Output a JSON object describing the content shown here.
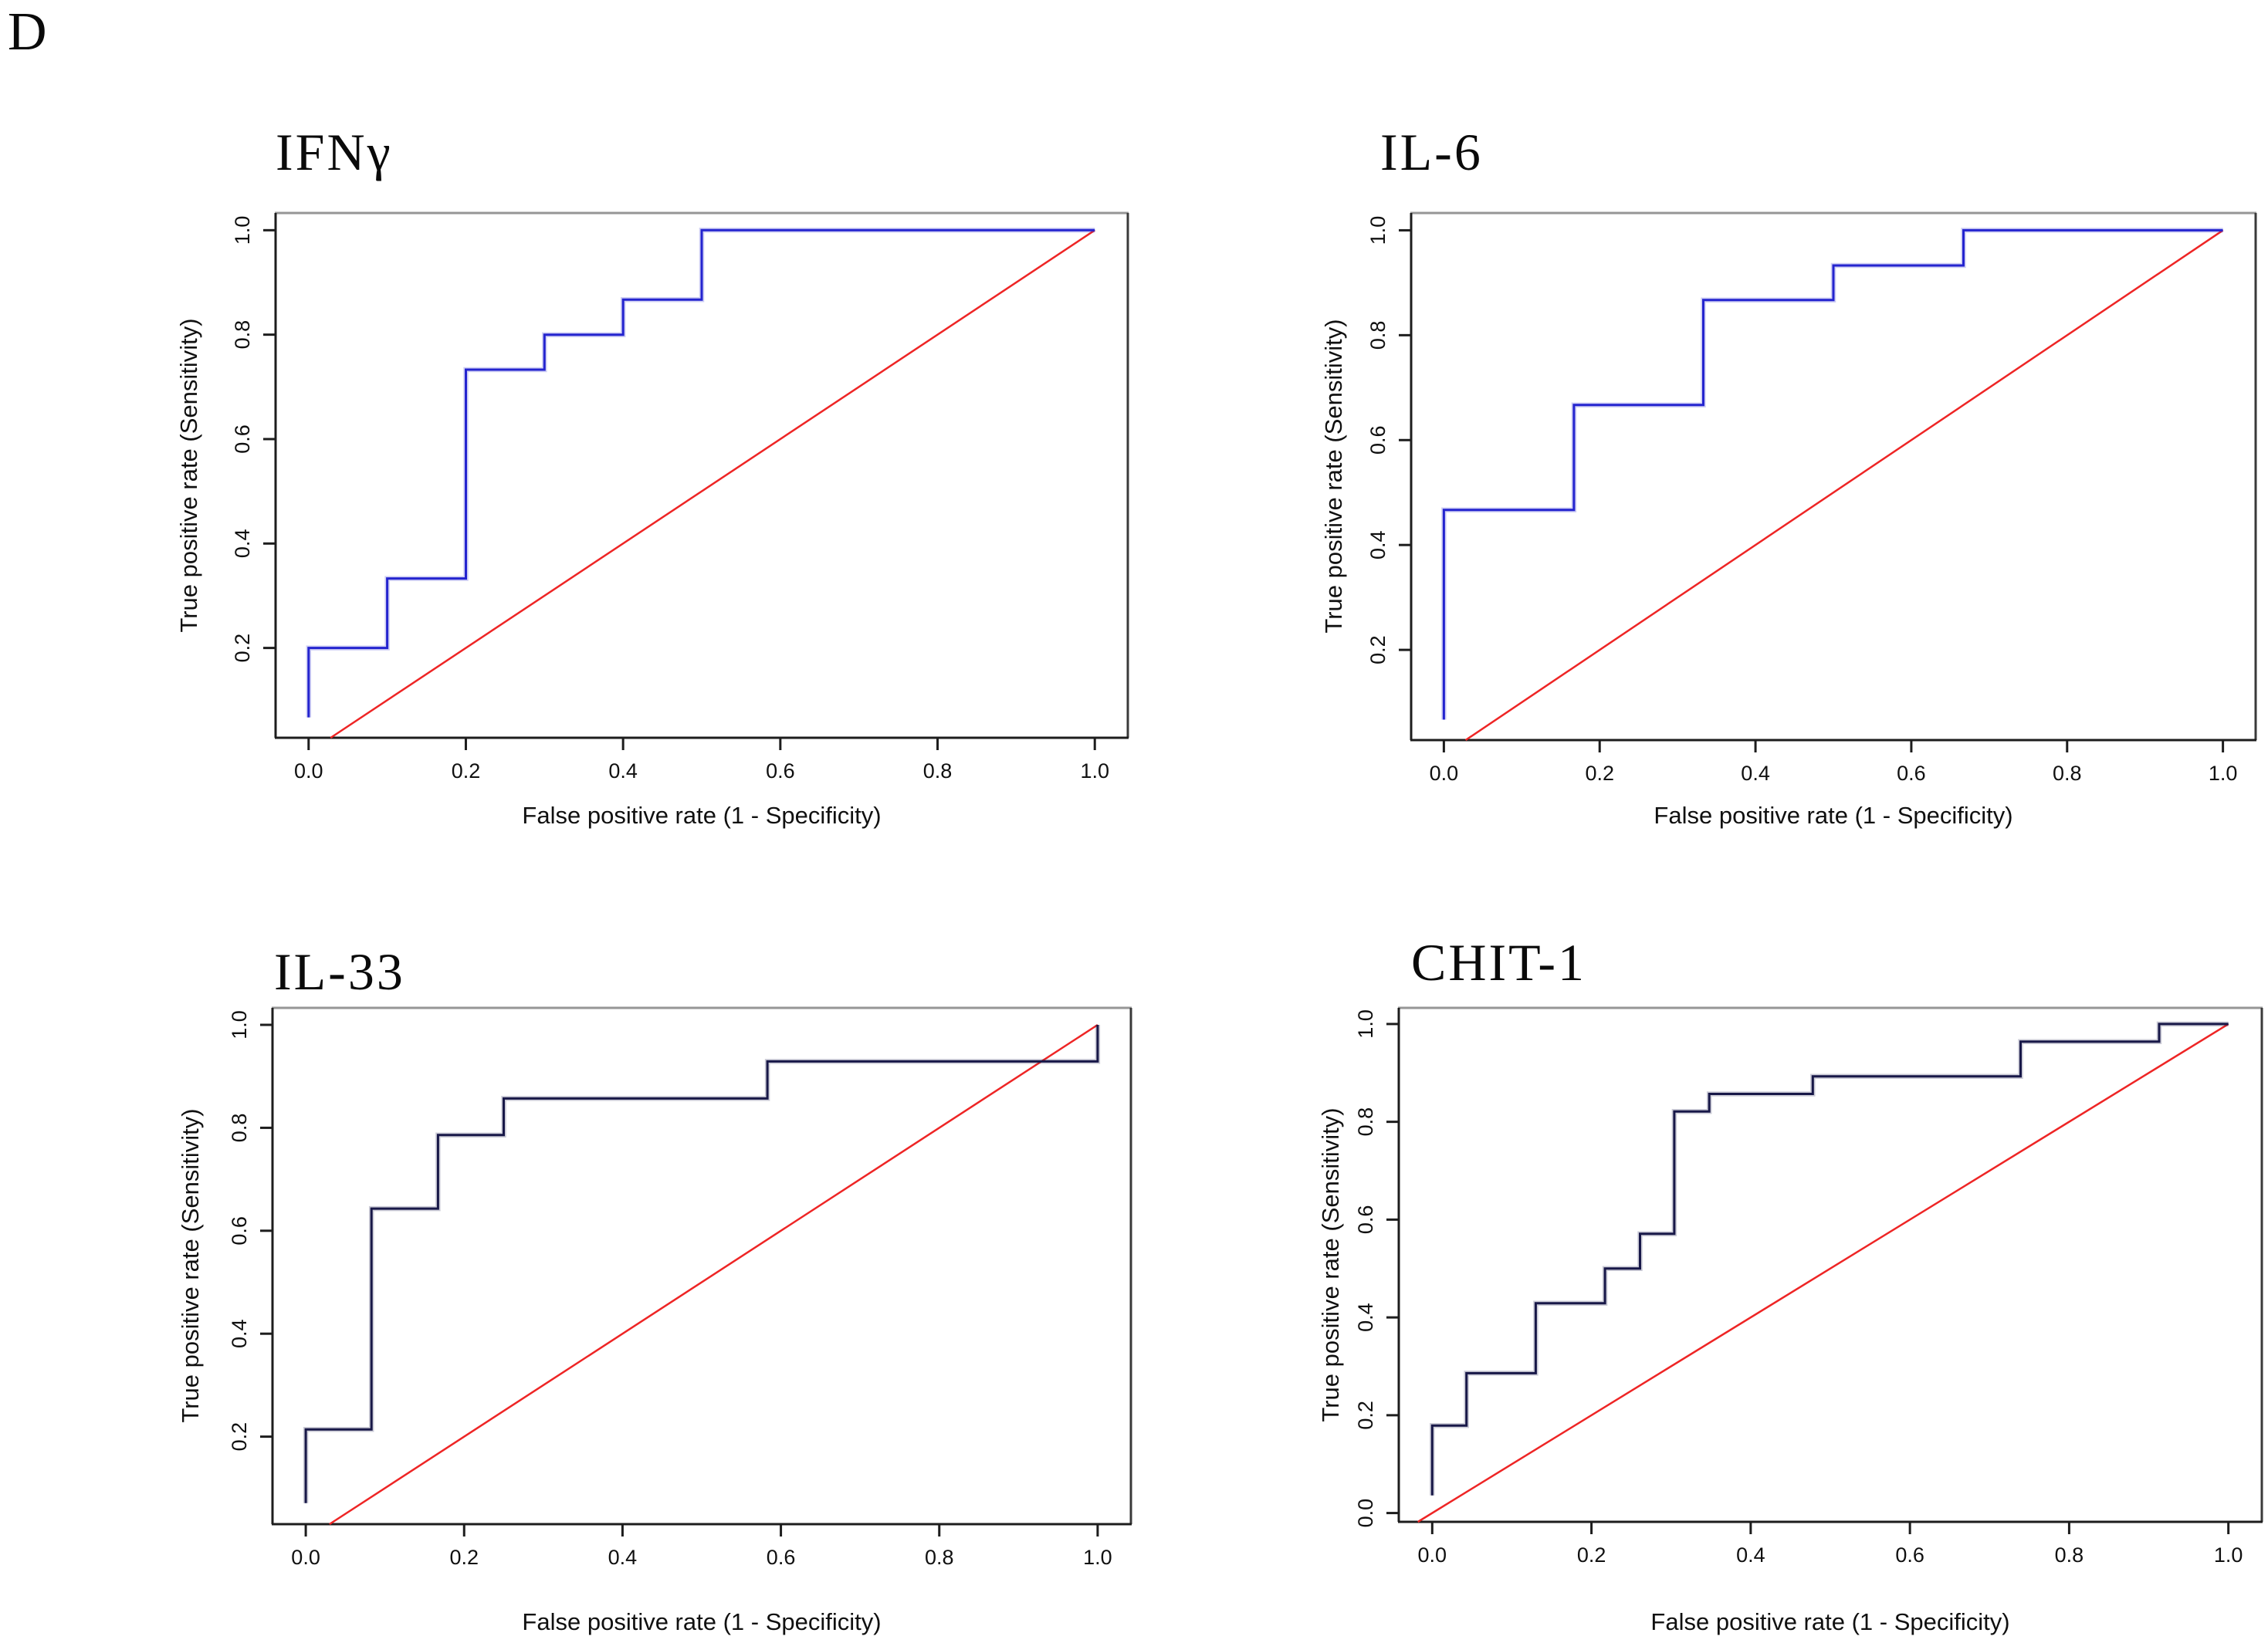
{
  "figure": {
    "panel_label": "D"
  },
  "chart_data": [
    {
      "type": "line",
      "title": "IFNγ",
      "xlabel": "False positive rate (1 - Specificity)",
      "ylabel": "True positive rate (Sensitivity)",
      "xticks": [
        0.0,
        0.2,
        0.4,
        0.6,
        0.8,
        1.0
      ],
      "yticks": [
        0.2,
        0.4,
        0.6,
        0.8,
        1.0
      ],
      "xlim": [
        -0.042,
        1.042
      ],
      "ylim": [
        0.028,
        1.033
      ],
      "grid": false,
      "legend": "none",
      "curve_color": "#2424cf",
      "diagonal_color": "#ee2525",
      "roc_points": [
        [
          0,
          0.067
        ],
        [
          0,
          0.2
        ],
        [
          0.1,
          0.2
        ],
        [
          0.1,
          0.333
        ],
        [
          0.2,
          0.333
        ],
        [
          0.2,
          0.733
        ],
        [
          0.3,
          0.733
        ],
        [
          0.3,
          0.8
        ],
        [
          0.4,
          0.8
        ],
        [
          0.4,
          0.867
        ],
        [
          0.5,
          0.867
        ],
        [
          0.5,
          1.0
        ],
        [
          1.0,
          1.0
        ]
      ],
      "diagonal": [
        [
          0,
          0
        ],
        [
          1,
          1
        ]
      ]
    },
    {
      "type": "line",
      "title": "IL-6",
      "xlabel": "False positive rate (1 - Specificity)",
      "ylabel": "True positive rate (Sensitivity)",
      "xticks": [
        0.0,
        0.2,
        0.4,
        0.6,
        0.8,
        1.0
      ],
      "yticks": [
        0.2,
        0.4,
        0.6,
        0.8,
        1.0
      ],
      "xlim": [
        -0.042,
        1.042
      ],
      "ylim": [
        0.028,
        1.033
      ],
      "grid": false,
      "legend": "none",
      "curve_color": "#2424cf",
      "diagonal_color": "#ee2525",
      "roc_points": [
        [
          0,
          0.067
        ],
        [
          0,
          0.467
        ],
        [
          0.167,
          0.467
        ],
        [
          0.167,
          0.667
        ],
        [
          0.333,
          0.667
        ],
        [
          0.333,
          0.867
        ],
        [
          0.5,
          0.867
        ],
        [
          0.5,
          0.933
        ],
        [
          0.667,
          0.933
        ],
        [
          0.667,
          1.0
        ],
        [
          1.0,
          1.0
        ]
      ],
      "diagonal": [
        [
          0,
          0
        ],
        [
          1,
          1
        ]
      ]
    },
    {
      "type": "line",
      "title": "IL-33",
      "xlabel": "False positive rate (1 - Specificity)",
      "ylabel": "True positive rate (Sensitivity)",
      "xticks": [
        0.0,
        0.2,
        0.4,
        0.6,
        0.8,
        1.0
      ],
      "yticks": [
        0.2,
        0.4,
        0.6,
        0.8,
        1.0
      ],
      "xlim": [
        -0.042,
        1.042
      ],
      "ylim": [
        0.03,
        1.033
      ],
      "grid": false,
      "legend": "none",
      "curve_color": "#181848",
      "diagonal_color": "#ee2525",
      "roc_points": [
        [
          0,
          0.071
        ],
        [
          0,
          0.214
        ],
        [
          0.083,
          0.214
        ],
        [
          0.083,
          0.643
        ],
        [
          0.167,
          0.643
        ],
        [
          0.167,
          0.786
        ],
        [
          0.25,
          0.786
        ],
        [
          0.25,
          0.857
        ],
        [
          0.583,
          0.857
        ],
        [
          0.583,
          0.929
        ],
        [
          1.0,
          0.929
        ],
        [
          1.0,
          1.0
        ]
      ],
      "diagonal": [
        [
          0,
          0
        ],
        [
          1,
          1
        ]
      ]
    },
    {
      "type": "line",
      "title": "CHIT-1",
      "xlabel": "False positive rate (1 - Specificity)",
      "ylabel": "True positive rate (Sensitivity)",
      "xticks": [
        0.0,
        0.2,
        0.4,
        0.6,
        0.8,
        1.0
      ],
      "yticks": [
        0.0,
        0.2,
        0.4,
        0.6,
        0.8,
        1.0
      ],
      "xlim": [
        -0.042,
        1.042
      ],
      "ylim": [
        -0.018,
        1.033
      ],
      "grid": false,
      "legend": "none",
      "curve_color": "#181848",
      "diagonal_color": "#ee2525",
      "roc_points": [
        [
          0,
          0.036
        ],
        [
          0,
          0.179
        ],
        [
          0.043,
          0.179
        ],
        [
          0.043,
          0.286
        ],
        [
          0.13,
          0.286
        ],
        [
          0.13,
          0.429
        ],
        [
          0.217,
          0.429
        ],
        [
          0.217,
          0.5
        ],
        [
          0.261,
          0.5
        ],
        [
          0.261,
          0.571
        ],
        [
          0.304,
          0.571
        ],
        [
          0.304,
          0.821
        ],
        [
          0.348,
          0.821
        ],
        [
          0.348,
          0.857
        ],
        [
          0.478,
          0.857
        ],
        [
          0.478,
          0.893
        ],
        [
          0.739,
          0.893
        ],
        [
          0.739,
          0.964
        ],
        [
          0.913,
          0.964
        ],
        [
          0.913,
          1.0
        ],
        [
          1.0,
          1.0
        ]
      ],
      "diagonal": [
        [
          0,
          0
        ],
        [
          1,
          1
        ]
      ]
    }
  ]
}
